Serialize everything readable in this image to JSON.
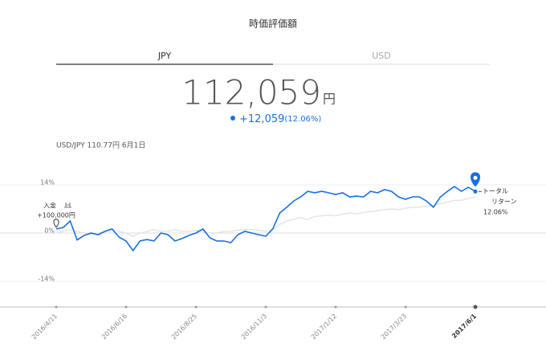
{
  "header": {
    "title": "時価評価額"
  },
  "tabs": [
    "JPY",
    "USD"
  ],
  "summary": {
    "amount": "112,059",
    "unit": "円",
    "change": "+12,059",
    "change_pct": "(12.06%)"
  },
  "fx_note": "USD/JPY 110.77円 6月1日",
  "chart_data": {
    "type": "line",
    "categories": [
      "2016/4/11",
      null,
      null,
      null,
      null,
      null,
      null,
      null,
      null,
      null,
      "2016/6/16",
      null,
      null,
      null,
      null,
      null,
      null,
      null,
      null,
      null,
      "2016/8/25",
      null,
      null,
      null,
      null,
      null,
      null,
      null,
      null,
      null,
      "2016/11/3",
      null,
      null,
      null,
      null,
      null,
      null,
      null,
      null,
      null,
      "2017/1/12",
      null,
      null,
      null,
      null,
      null,
      null,
      null,
      null,
      null,
      "2017/3/23",
      null,
      null,
      null,
      null,
      null,
      null,
      null,
      null,
      null,
      "2017/6/1"
    ],
    "series": [
      {
        "color": "#1a6fe0",
        "values": [
          1.2,
          1.6,
          3.5,
          -2,
          -0.7,
          0,
          -0.5,
          0.5,
          1.2,
          -1.2,
          -2.3,
          -5.1,
          -2.3,
          -1.9,
          -2.3,
          0,
          -0.5,
          -2.3,
          -1.6,
          -0.7,
          0,
          1.2,
          -1.4,
          -2.3,
          -2.3,
          -2.8,
          -0.5,
          0.5,
          0,
          -0.5,
          -0.9,
          1.2,
          5.8,
          7.5,
          9.3,
          10.5,
          12.1,
          11.7,
          12.1,
          11.7,
          11.2,
          11.7,
          10.5,
          10.7,
          10.5,
          12.1,
          11.7,
          12.6,
          12.1,
          10.5,
          9.8,
          10.5,
          10.5,
          9.3,
          7.5,
          10.5,
          12.1,
          13.5,
          12.1,
          13.3,
          12.06
        ]
      },
      {
        "color": "#e3e3e3",
        "values": [
          0,
          0.5,
          1,
          0.5,
          0,
          -0.5,
          0,
          0.5,
          1,
          0.5,
          0,
          -1,
          0,
          0.5,
          1,
          0.5,
          0.5,
          1,
          0.5,
          0.5,
          0.8,
          0.5,
          0,
          0,
          0.5,
          0.5,
          0.8,
          1,
          1,
          0.8,
          0.5,
          1,
          2.5,
          3.5,
          4,
          4.5,
          4,
          4.8,
          5,
          5.2,
          5,
          5.5,
          5.8,
          5.5,
          6,
          6.2,
          6.5,
          6.8,
          7,
          6.8,
          7.2,
          7.5,
          7.5,
          7.8,
          8,
          8.5,
          9,
          9.5,
          9.5,
          10,
          10.5
        ]
      }
    ],
    "ylim": [
      -21,
      21
    ],
    "yticks": [
      {
        "value": 14,
        "label": "14%"
      },
      {
        "value": 0,
        "label": "0%"
      },
      {
        "value": -14,
        "label": "-14%"
      }
    ],
    "grid": true,
    "annotations": {
      "start": [
        "入金",
        "+100,000円"
      ],
      "end": [
        "トータル",
        "リターン",
        "12.06%"
      ]
    }
  }
}
